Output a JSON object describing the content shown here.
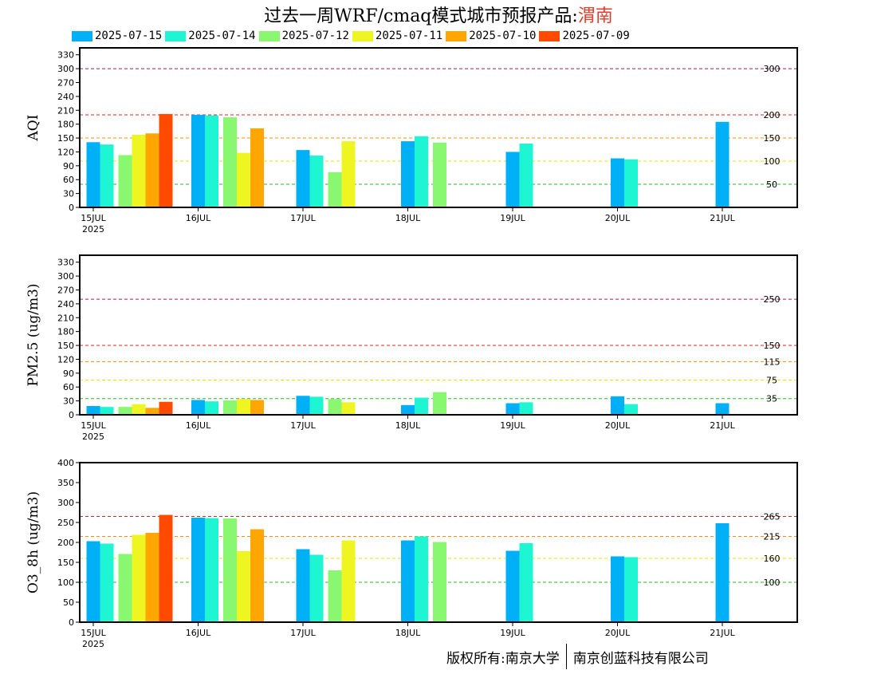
{
  "title": {
    "main": "过去一周WRF/cmaq模式城市预报产品:",
    "city": "渭南"
  },
  "legend": [
    {
      "label": "2025-07-15",
      "color": "#00b0f6"
    },
    {
      "label": "2025-07-14",
      "color": "#1ef5d2"
    },
    {
      "label": "2025-07-12",
      "color": "#89f770"
    },
    {
      "label": "2025-07-11",
      "color": "#eef520"
    },
    {
      "label": "2025-07-10",
      "color": "#ffa600"
    },
    {
      "label": "2025-07-09",
      "color": "#ff4a00"
    }
  ],
  "copyright": {
    "left": "版权所有:南京大学",
    "right": "南京创蓝科技有限公司"
  },
  "chart_data": [
    {
      "type": "bar",
      "ylabel": "AQI",
      "ylim": [
        0,
        345
      ],
      "yticks": [
        0,
        30,
        60,
        90,
        120,
        150,
        180,
        210,
        240,
        270,
        300,
        330
      ],
      "x_ticks": [
        "15JUL",
        "16JUL",
        "17JUL",
        "18JUL",
        "19JUL",
        "20JUL",
        "21JUL"
      ],
      "x_year": "2025",
      "ref_lines": [
        {
          "value": 300,
          "label": "300",
          "color": "#b0145a"
        },
        {
          "value": 200,
          "label": "200",
          "color": "#e02020"
        },
        {
          "value": 150,
          "label": "150",
          "color": "#ff8c00"
        },
        {
          "value": 100,
          "label": "100",
          "color": "#e6e600"
        },
        {
          "value": 50,
          "label": "50",
          "color": "#22bb22"
        }
      ],
      "series": [
        {
          "name": "2025-07-15",
          "points": [
            [
              0,
              141
            ],
            [
              1,
              200
            ],
            [
              2,
              124
            ],
            [
              3,
              143
            ],
            [
              4,
              120
            ],
            [
              5,
              106
            ],
            [
              6,
              185
            ]
          ]
        },
        {
          "name": "2025-07-14",
          "points": [
            [
              0,
              136
            ],
            [
              1,
              199
            ],
            [
              2,
              112
            ],
            [
              3,
              154
            ],
            [
              4,
              138
            ],
            [
              5,
              104
            ]
          ]
        },
        {
          "name": "2025-07-12",
          "points": [
            [
              0.5,
              113
            ],
            [
              1.5,
              195
            ],
            [
              2.5,
              76
            ],
            [
              3.5,
              140
            ]
          ]
        },
        {
          "name": "2025-07-11",
          "points": [
            [
              0.5,
              157
            ],
            [
              1.5,
              118
            ],
            [
              2.5,
              143
            ]
          ]
        },
        {
          "name": "2025-07-10",
          "points": [
            [
              0.5,
              160
            ],
            [
              1.5,
              171
            ]
          ]
        },
        {
          "name": "2025-07-09",
          "points": [
            [
              0.5,
              202
            ]
          ]
        }
      ]
    },
    {
      "type": "bar",
      "ylabel": "PM2.5 (ug/m3)",
      "ylim": [
        0,
        345
      ],
      "yticks": [
        0,
        30,
        60,
        90,
        120,
        150,
        180,
        210,
        240,
        270,
        300,
        330
      ],
      "x_ticks": [
        "15JUL",
        "16JUL",
        "17JUL",
        "18JUL",
        "19JUL",
        "20JUL",
        "21JUL"
      ],
      "x_year": "2025",
      "ref_lines": [
        {
          "value": 250,
          "label": "250",
          "color": "#b0145a"
        },
        {
          "value": 150,
          "label": "150",
          "color": "#e02020"
        },
        {
          "value": 115,
          "label": "115",
          "color": "#ff8c00"
        },
        {
          "value": 75,
          "label": "75",
          "color": "#e6e600"
        },
        {
          "value": 35,
          "label": "35",
          "color": "#22bb22"
        }
      ],
      "series": [
        {
          "name": "2025-07-15",
          "points": [
            [
              0,
              19
            ],
            [
              1,
              32
            ],
            [
              2,
              41
            ],
            [
              3,
              21
            ],
            [
              4,
              25
            ],
            [
              5,
              40
            ],
            [
              6,
              25
            ]
          ]
        },
        {
          "name": "2025-07-14",
          "points": [
            [
              0,
              17
            ],
            [
              1,
              29
            ],
            [
              2,
              39
            ],
            [
              3,
              37
            ],
            [
              4,
              27
            ],
            [
              5,
              23
            ]
          ]
        },
        {
          "name": "2025-07-12",
          "points": [
            [
              0.5,
              17
            ],
            [
              1.5,
              31
            ],
            [
              2.5,
              34
            ],
            [
              3.5,
              49
            ]
          ]
        },
        {
          "name": "2025-07-11",
          "points": [
            [
              0.5,
              23
            ],
            [
              1.5,
              34
            ],
            [
              2.5,
              27
            ]
          ]
        },
        {
          "name": "2025-07-10",
          "points": [
            [
              0.5,
              15
            ],
            [
              1.5,
              32
            ]
          ]
        },
        {
          "name": "2025-07-09",
          "points": [
            [
              0.5,
              28
            ]
          ]
        }
      ]
    },
    {
      "type": "bar",
      "ylabel": "O3_8h (ug/m3)",
      "ylim": [
        0,
        400
      ],
      "yticks": [
        0,
        50,
        100,
        150,
        200,
        250,
        300,
        350,
        400
      ],
      "x_ticks": [
        "15JUL",
        "16JUL",
        "17JUL",
        "18JUL",
        "19JUL",
        "20JUL",
        "21JUL"
      ],
      "x_year": "2025",
      "ref_lines": [
        {
          "value": 265,
          "label": "265",
          "color": "#e02020"
        },
        {
          "value": 215,
          "label": "215",
          "color": "#ff8c00"
        },
        {
          "value": 160,
          "label": "160",
          "color": "#e6e600"
        },
        {
          "value": 100,
          "label": "100",
          "color": "#22bb22"
        }
      ],
      "series": [
        {
          "name": "2025-07-15",
          "points": [
            [
              0,
              203
            ],
            [
              1,
              262
            ],
            [
              2,
              183
            ],
            [
              3,
              205
            ],
            [
              4,
              179
            ],
            [
              5,
              165
            ],
            [
              6,
              248
            ]
          ]
        },
        {
          "name": "2025-07-14",
          "points": [
            [
              0,
              197
            ],
            [
              1,
              261
            ],
            [
              2,
              169
            ],
            [
              3,
              215
            ],
            [
              4,
              198
            ],
            [
              5,
              163
            ]
          ]
        },
        {
          "name": "2025-07-12",
          "points": [
            [
              0.5,
              171
            ],
            [
              1.5,
              260
            ],
            [
              2.5,
              130
            ],
            [
              3.5,
              201
            ]
          ]
        },
        {
          "name": "2025-07-11",
          "points": [
            [
              0.5,
              219
            ],
            [
              1.5,
              178
            ],
            [
              2.5,
              205
            ]
          ]
        },
        {
          "name": "2025-07-10",
          "points": [
            [
              0.5,
              224
            ],
            [
              1.5,
              233
            ]
          ]
        },
        {
          "name": "2025-07-09",
          "points": [
            [
              0.5,
              269
            ]
          ]
        }
      ]
    }
  ]
}
